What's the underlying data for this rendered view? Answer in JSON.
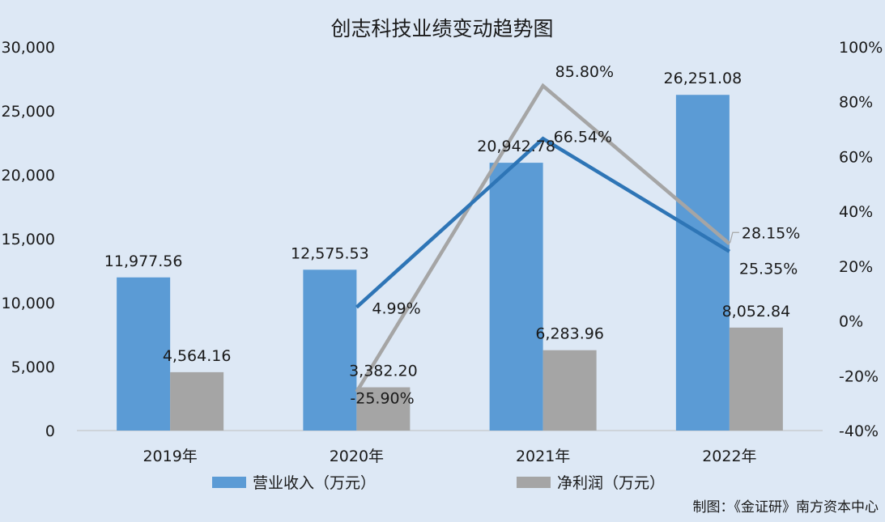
{
  "chart_data": {
    "type": "bar",
    "title": "创志科技业绩变动趋势图",
    "categories": [
      "2019年",
      "2020年",
      "2021年",
      "2022年"
    ],
    "series": [
      {
        "name": "营业收入（万元）",
        "axis": "left",
        "values": [
          11977.56,
          12575.53,
          20942.78,
          26251.08
        ],
        "labels": [
          "11,977.56",
          "12,575.53",
          "20,942.78",
          "26,251.08"
        ],
        "color": "#5b9bd5"
      },
      {
        "name": "净利润（万元）",
        "axis": "left",
        "values": [
          4564.16,
          3382.2,
          6283.96,
          8052.84
        ],
        "labels": [
          "4,564.16",
          "3,382.20",
          "6,283.96",
          "8,052.84"
        ],
        "color": "#a5a5a5"
      },
      {
        "axis": "right",
        "type": "line",
        "values": [
          null,
          4.99,
          66.54,
          25.35
        ],
        "labels": [
          "",
          "4.99%",
          "66.54%",
          "25.35%"
        ],
        "color": "#2e75b6"
      },
      {
        "axis": "right",
        "type": "line",
        "values": [
          null,
          -25.9,
          85.8,
          28.15
        ],
        "labels": [
          "",
          "-25.90%",
          "85.80%",
          "28.15%"
        ],
        "color": "#a5a5a5"
      }
    ],
    "ylim_left": [
      0,
      30000
    ],
    "ylim_right": [
      -40,
      100
    ],
    "yticks_left": [
      "0",
      "5,000",
      "10,000",
      "15,000",
      "20,000",
      "25,000",
      "30,000"
    ],
    "yticks_right": [
      "-40%",
      "-20%",
      "0%",
      "20%",
      "40%",
      "60%",
      "80%",
      "100%"
    ],
    "grid": false,
    "legend_position": "bottom"
  },
  "credit": "制图：《金证研》南方资本中心"
}
